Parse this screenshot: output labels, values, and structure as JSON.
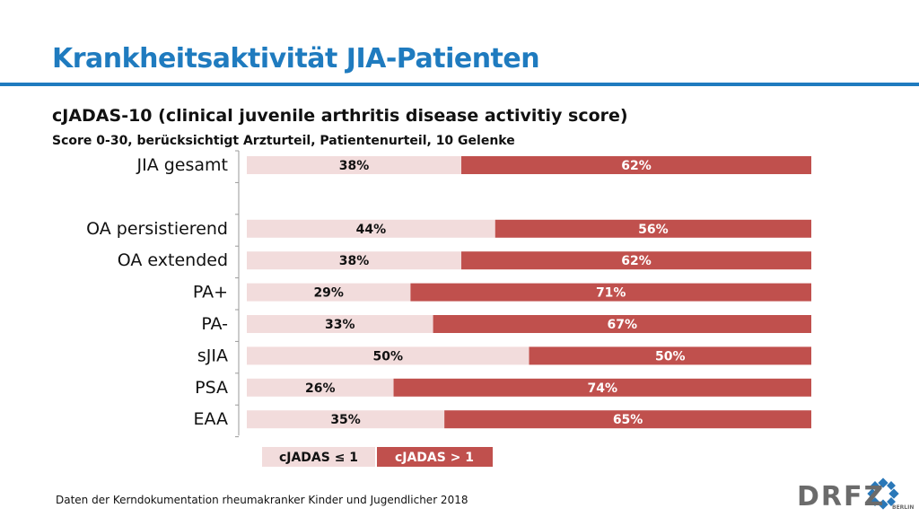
{
  "header": {
    "title": "Krankheitsaktivität JIA-Patienten",
    "subtitle": "cJADAS-10 (clinical juvenile arthritis disease activitiy score)",
    "subsubtitle": "Score 0-30, berücksichtigt Arzturteil, Patientenurteil, 10 Gelenke"
  },
  "footer": {
    "source": "Daten der Kerndokumentation rheumakranker Kinder und Jugendlicher 2018",
    "logo": "DRFZ",
    "logo_sub": "BERLIN"
  },
  "colors": {
    "title": "#1f7bbf",
    "low": "#f2dcdc",
    "high": "#c0504d"
  },
  "chart_data": {
    "type": "bar",
    "orientation": "horizontal",
    "stacked": true,
    "categories": [
      "JIA gesamt",
      "",
      "OA persistierend",
      "OA extended",
      "PA+",
      "PA-",
      "sJIA",
      "PSA",
      "EAA"
    ],
    "series": [
      {
        "name": "cJADAS ≤ 1",
        "values": [
          38,
          null,
          44,
          38,
          29,
          33,
          50,
          26,
          35
        ],
        "labels": [
          "38%",
          "",
          "44%",
          "38%",
          "29%",
          "33%",
          "50%",
          "26%",
          "35%"
        ]
      },
      {
        "name": "cJADAS > 1",
        "values": [
          62,
          null,
          56,
          62,
          71,
          67,
          50,
          74,
          65
        ],
        "labels": [
          "62%",
          "",
          "56%",
          "62%",
          "71%",
          "67%",
          "50%",
          "74%",
          "65%"
        ]
      }
    ],
    "xlim": [
      0,
      100
    ],
    "legend_position": "bottom",
    "grid": false
  }
}
